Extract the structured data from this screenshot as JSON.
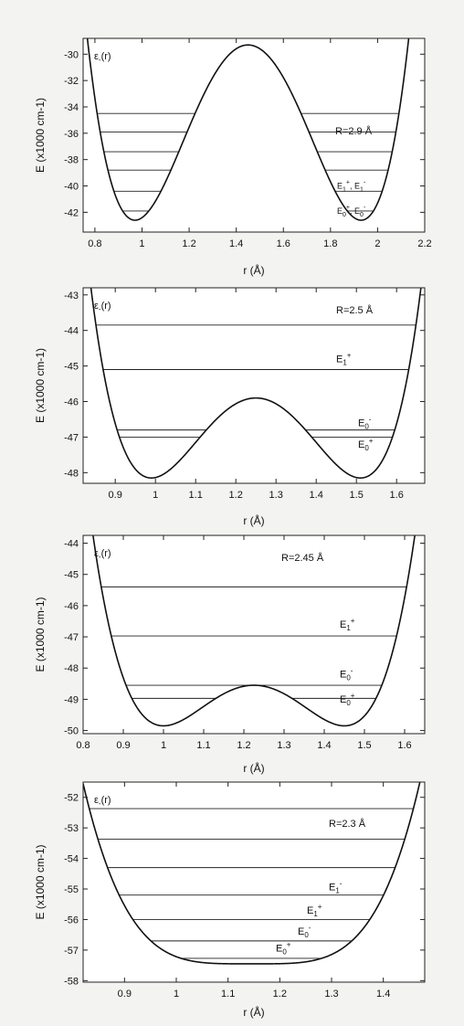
{
  "chart_data": [
    {
      "type": "line",
      "panel": "a",
      "xlabel": "r (Å)",
      "ylabel": "E (x1000 cm-1)",
      "xlim": [
        0.75,
        2.2
      ],
      "ylim": [
        -43.5,
        -28.8
      ],
      "xticks": [
        0.8,
        1.0,
        1.2,
        1.4,
        1.6,
        1.8,
        2.0,
        2.2
      ],
      "yticks": [
        -42,
        -40,
        -38,
        -36,
        -34,
        -32,
        -30
      ],
      "curve_label": {
        "base": "ε",
        "sub": "-",
        "tail": "(r)"
      },
      "parameter_label": "R=2.9 Å",
      "potential": {
        "shape": "double_well",
        "x_center": 1.45,
        "barrier_top": -29.3,
        "minima": [
          [
            0.97,
            -42.6
          ],
          [
            1.93,
            -42.6
          ]
        ],
        "wall_points": [
          [
            0.76,
            -29.0
          ],
          [
            2.14,
            -29.0
          ]
        ]
      },
      "levels": [
        -34.5,
        -35.9,
        -37.4,
        -38.8,
        -40.4,
        -41.9
      ],
      "level_labels": [
        {
          "parts": [
            [
              "E",
              ""
            ],
            [
              "1",
              "sub"
            ],
            [
              "+",
              "sup"
            ],
            [
              ", E",
              ""
            ],
            [
              "1",
              "sub"
            ],
            [
              "-",
              "sup"
            ]
          ],
          "y": -40.2
        },
        {
          "parts": [
            [
              "E",
              ""
            ],
            [
              "0",
              "sub"
            ],
            [
              "+",
              "sup"
            ],
            [
              ", E",
              ""
            ],
            [
              "0",
              "sub"
            ],
            [
              "-",
              "sup"
            ]
          ],
          "y": -42.1
        }
      ]
    },
    {
      "type": "line",
      "panel": "b",
      "xlabel": "r (Å)",
      "ylabel": "E (x1000 cm-1)",
      "xlim": [
        0.82,
        1.67
      ],
      "ylim": [
        -48.3,
        -42.8
      ],
      "xticks": [
        0.9,
        1.0,
        1.1,
        1.2,
        1.3,
        1.4,
        1.5,
        1.6
      ],
      "yticks": [
        -48,
        -47,
        -46,
        -45,
        -44,
        -43
      ],
      "curve_label": {
        "base": "ε",
        "sub": "-",
        "tail": "(r)"
      },
      "parameter_label": "R=2.5 Å",
      "potential": {
        "shape": "double_well",
        "x_center": 1.25,
        "barrier_top": -45.9,
        "minima": [
          [
            0.99,
            -48.15
          ],
          [
            1.51,
            -48.15
          ]
        ],
        "wall_points": [
          [
            0.825,
            -42.85
          ],
          [
            1.66,
            -42.85
          ]
        ]
      },
      "levels": [
        -43.85,
        -45.1,
        -46.8,
        -47.0
      ],
      "level_labels": [
        {
          "parts": [
            [
              "E",
              ""
            ],
            [
              "1",
              "sub"
            ],
            [
              "+",
              "sup"
            ]
          ],
          "y": -44.9
        },
        {
          "parts": [
            [
              "E",
              ""
            ],
            [
              "0",
              "sub"
            ],
            [
              "-",
              "sup"
            ]
          ],
          "y": -46.7
        },
        {
          "parts": [
            [
              "E",
              ""
            ],
            [
              "0",
              "sub"
            ],
            [
              "+",
              "sup"
            ]
          ],
          "y": -47.3
        }
      ]
    },
    {
      "type": "line",
      "panel": "c",
      "xlabel": "r (Å)",
      "ylabel": "E (x1000 cm-1)",
      "xlim": [
        0.8,
        1.65
      ],
      "ylim": [
        -50.1,
        -43.75
      ],
      "xticks": [
        0.8,
        0.9,
        1.0,
        1.1,
        1.2,
        1.3,
        1.4,
        1.5,
        1.6
      ],
      "yticks": [
        -50,
        -49,
        -48,
        -47,
        -46,
        -45,
        -44
      ],
      "curve_label": {
        "base": "ε",
        "sub": "-",
        "tail": "(r)"
      },
      "parameter_label": "R=2.45 Å",
      "potential": {
        "shape": "double_well",
        "x_center": 1.225,
        "barrier_top": -48.55,
        "minima": [
          [
            0.995,
            -49.85
          ],
          [
            1.445,
            -49.85
          ]
        ],
        "wall_points": [
          [
            0.825,
            -43.8
          ],
          [
            1.625,
            -43.8
          ]
        ]
      },
      "levels": [
        -45.4,
        -46.97,
        -48.55,
        -48.97
      ],
      "level_labels": [
        {
          "parts": [
            [
              "E",
              ""
            ],
            [
              "1",
              "sub"
            ],
            [
              "+",
              "sup"
            ]
          ],
          "y": -46.7
        },
        {
          "parts": [
            [
              "E",
              ""
            ],
            [
              "0",
              "sub"
            ],
            [
              "-",
              "sup"
            ]
          ],
          "y": -48.3
        },
        {
          "parts": [
            [
              "E",
              ""
            ],
            [
              "0",
              "sub"
            ],
            [
              "+",
              "sup"
            ]
          ],
          "y": -49.1
        }
      ]
    },
    {
      "type": "line",
      "panel": "d",
      "xlabel": "r (Å)",
      "ylabel": "E (x1000 cm-1)",
      "xlim": [
        0.82,
        1.48
      ],
      "ylim": [
        -58.05,
        -51.5
      ],
      "xticks": [
        0.9,
        1.0,
        1.1,
        1.2,
        1.3,
        1.4
      ],
      "yticks": [
        -58,
        -57,
        -56,
        -55,
        -54,
        -53,
        -52
      ],
      "curve_label": {
        "base": "ε",
        "sub": "-",
        "tail": "(r)"
      },
      "parameter_label": "R=2.3 Å",
      "potential": {
        "shape": "single_well",
        "x_center": 1.145,
        "minimum": -57.45,
        "wall_points": [
          [
            0.835,
            -51.55
          ],
          [
            1.47,
            -51.55
          ]
        ]
      },
      "levels": [
        -52.37,
        -53.37,
        -54.3,
        -55.2,
        -56.0,
        -56.7,
        -57.27
      ],
      "level_labels": [
        {
          "parts": [
            [
              "E",
              ""
            ],
            [
              "1",
              "sub"
            ],
            [
              "-",
              "sup"
            ]
          ],
          "y": -55.05
        },
        {
          "parts": [
            [
              "E",
              ""
            ],
            [
              "1",
              "sub"
            ],
            [
              "+",
              "sup"
            ]
          ],
          "y": -55.8
        },
        {
          "parts": [
            [
              "E",
              ""
            ],
            [
              "0",
              "sub"
            ],
            [
              "-",
              "sup"
            ]
          ],
          "y": -56.5
        },
        {
          "parts": [
            [
              "E",
              ""
            ],
            [
              "0",
              "sub"
            ],
            [
              "+",
              "sup"
            ]
          ],
          "y": -57.05
        }
      ]
    }
  ]
}
